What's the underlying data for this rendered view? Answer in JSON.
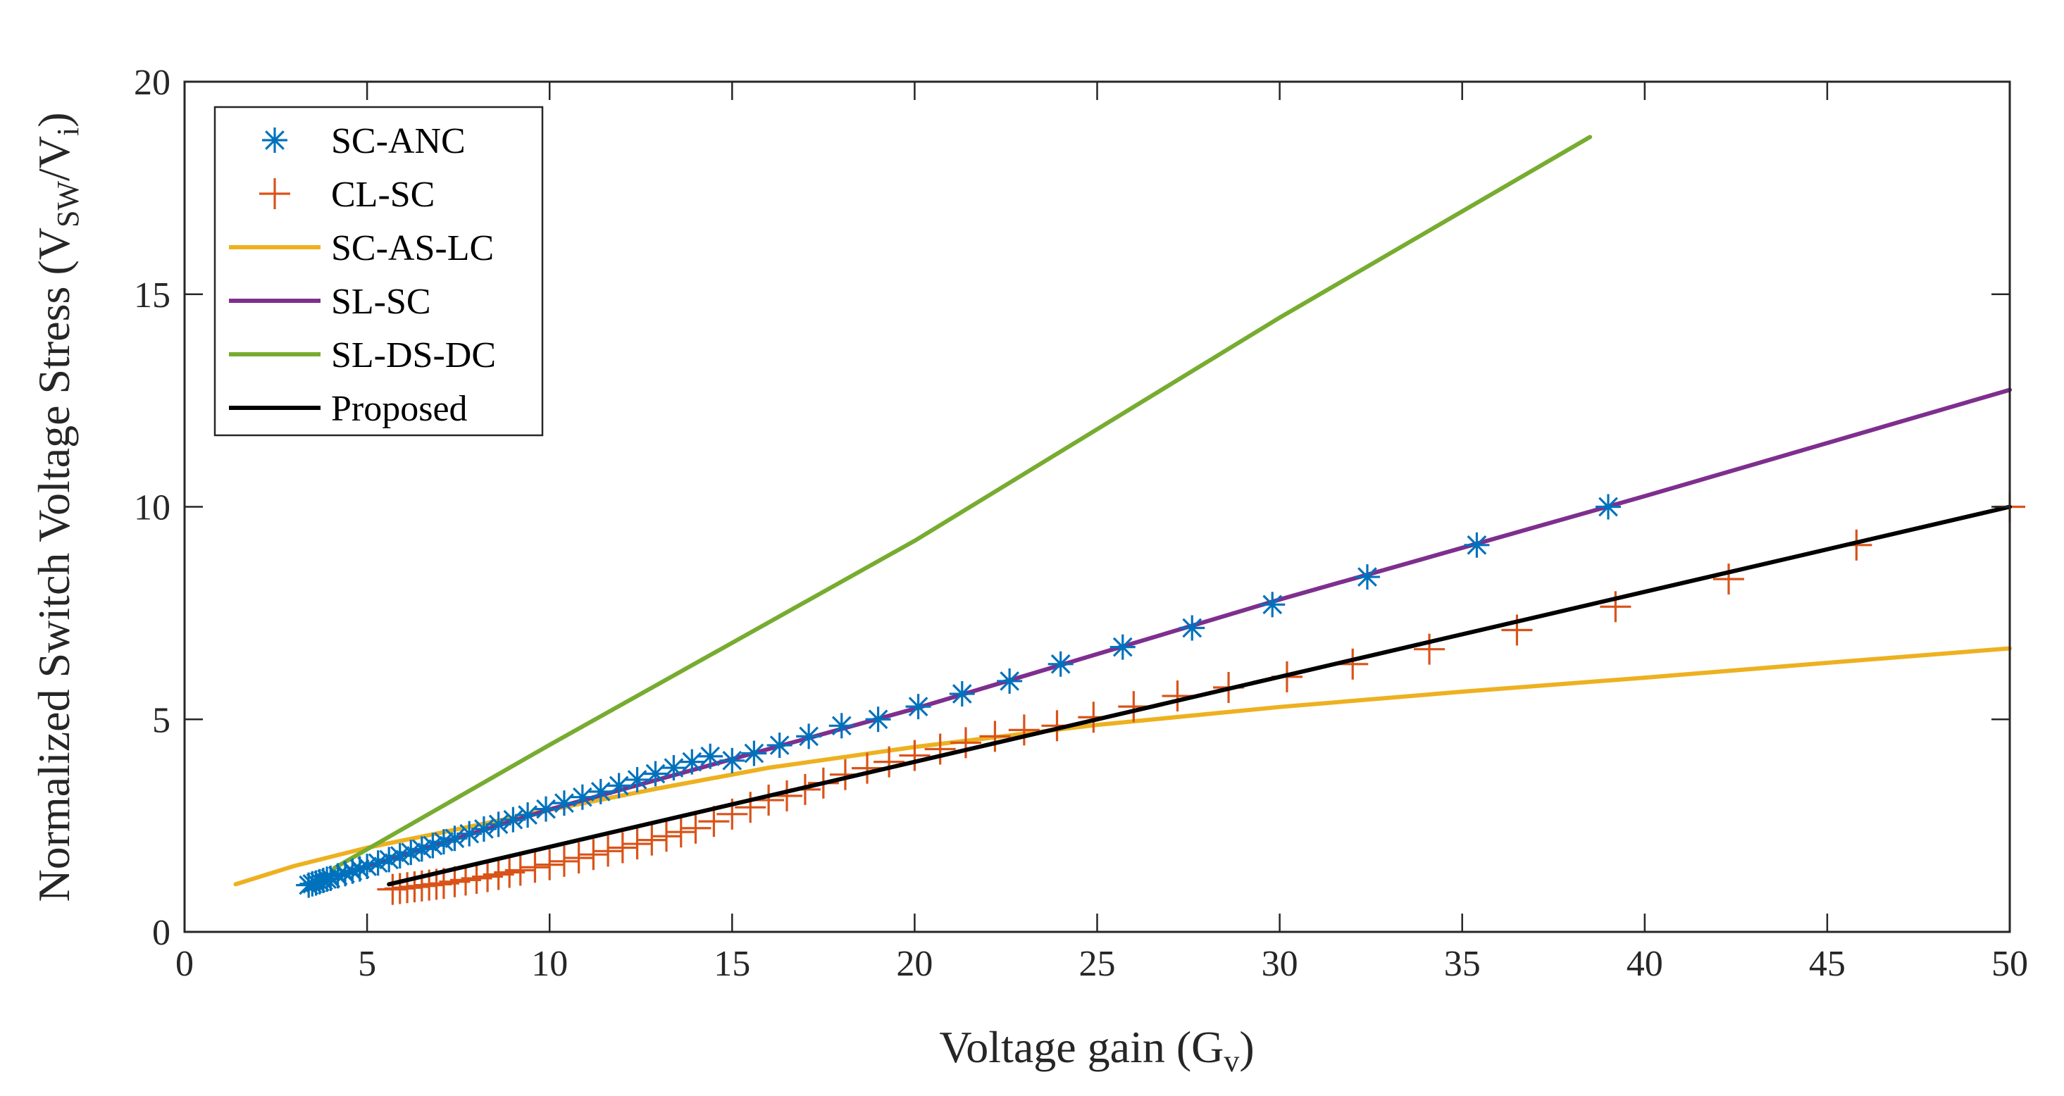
{
  "chart_data": {
    "type": "line",
    "title": "",
    "xlabel": {
      "main": "Voltage gain (G",
      "sub": "v",
      "close": ")"
    },
    "ylabel": {
      "main": "Normalized Switch Voltage Stress (V",
      "sub": "SW",
      "mid": "/V",
      "sub2": "i",
      "close": ")"
    },
    "xlim": [
      0,
      50
    ],
    "ylim": [
      0,
      20
    ],
    "xticks": [
      0,
      5,
      10,
      15,
      20,
      25,
      30,
      35,
      40,
      45,
      50
    ],
    "yticks": [
      0,
      5,
      10,
      15,
      20
    ],
    "grid": false,
    "legend_position": "top-left",
    "series": [
      {
        "name": "SC-ANC",
        "style": "marker",
        "marker": "asterisk",
        "color": "#0072BD",
        "x": [
          3.4,
          3.5,
          3.6,
          3.7,
          3.8,
          3.9,
          4.0,
          4.2,
          4.4,
          4.6,
          4.8,
          5.0,
          5.3,
          5.6,
          5.9,
          6.2,
          6.5,
          6.8,
          7.1,
          7.4,
          7.8,
          8.2,
          8.6,
          9.0,
          9.4,
          9.9,
          10.4,
          10.9,
          11.4,
          11.9,
          12.4,
          12.9,
          13.4,
          13.9,
          14.4,
          15.0,
          15.6,
          16.3,
          17.1,
          18.0,
          19.0,
          20.1,
          21.3,
          22.6,
          24.0,
          25.7,
          27.6,
          29.8,
          32.4,
          35.4,
          39.0
        ],
        "y": [
          1.1,
          1.13,
          1.15,
          1.18,
          1.21,
          1.24,
          1.26,
          1.32,
          1.37,
          1.43,
          1.48,
          1.54,
          1.62,
          1.7,
          1.79,
          1.87,
          1.95,
          2.03,
          2.12,
          2.2,
          2.31,
          2.42,
          2.53,
          2.64,
          2.75,
          2.89,
          3.03,
          3.17,
          3.3,
          3.44,
          3.58,
          3.72,
          3.86,
          4.0,
          4.13,
          4.03,
          4.2,
          4.39,
          4.6,
          4.85,
          5.0,
          5.3,
          5.6,
          5.9,
          6.3,
          6.7,
          7.15,
          7.7,
          8.35,
          9.1,
          10.0
        ]
      },
      {
        "name": "CL-SC",
        "style": "marker",
        "marker": "plus",
        "color": "#D95319",
        "x": [
          5.7,
          5.9,
          6.1,
          6.3,
          6.5,
          6.7,
          6.9,
          7.1,
          7.4,
          7.7,
          8.0,
          8.3,
          8.6,
          8.9,
          9.2,
          9.6,
          10.0,
          10.4,
          10.8,
          11.2,
          11.6,
          12.0,
          12.4,
          12.8,
          13.2,
          13.6,
          14.0,
          14.5,
          15.0,
          15.5,
          16.0,
          16.5,
          17.0,
          17.5,
          18.1,
          18.7,
          19.3,
          20.0,
          20.7,
          21.4,
          22.2,
          23.0,
          23.9,
          24.9,
          26.0,
          27.2,
          28.6,
          30.2,
          32.0,
          34.1,
          36.5,
          39.2,
          42.3,
          45.8,
          50.0
        ],
        "y": [
          1.0,
          1.02,
          1.04,
          1.06,
          1.08,
          1.1,
          1.12,
          1.14,
          1.18,
          1.22,
          1.26,
          1.3,
          1.35,
          1.4,
          1.45,
          1.52,
          1.58,
          1.66,
          1.74,
          1.82,
          1.9,
          1.98,
          2.07,
          2.16,
          2.25,
          2.35,
          2.44,
          2.6,
          2.77,
          2.93,
          3.1,
          3.2,
          3.35,
          3.5,
          3.7,
          3.85,
          4.0,
          4.15,
          4.3,
          4.45,
          4.6,
          4.75,
          4.85,
          5.05,
          5.3,
          5.55,
          5.75,
          6.0,
          6.3,
          6.65,
          7.1,
          7.65,
          8.3,
          9.1,
          10.0
        ]
      },
      {
        "name": "SC-AS-LC",
        "style": "line",
        "color": "#EDB120",
        "x": [
          1.4,
          3.0,
          5.0,
          7.0,
          10.0,
          13.0,
          16.0,
          20.0,
          25.0,
          30.0,
          35.0,
          40.0,
          45.0,
          50.0
        ],
        "y": [
          1.12,
          1.55,
          1.98,
          2.33,
          2.87,
          3.38,
          3.86,
          4.35,
          4.87,
          5.29,
          5.65,
          5.98,
          6.33,
          6.67
        ]
      },
      {
        "name": "SL-SC",
        "style": "line",
        "color": "#7E2F8E",
        "x": [
          4.3,
          10.0,
          20.0,
          30.0,
          40.0,
          50.0
        ],
        "y": [
          1.35,
          2.88,
          5.25,
          7.82,
          10.25,
          12.75
        ]
      },
      {
        "name": "SL-DS-DC",
        "style": "line",
        "color": "#77AC30",
        "x": [
          4.1,
          10.0,
          20.0,
          30.0,
          38.5
        ],
        "y": [
          1.5,
          4.4,
          9.2,
          14.45,
          18.7
        ]
      },
      {
        "name": "Proposed",
        "style": "line",
        "color": "#000000",
        "x": [
          5.6,
          10.0,
          20.0,
          30.0,
          40.0,
          50.0
        ],
        "y": [
          1.12,
          2.0,
          4.0,
          6.0,
          8.0,
          10.0
        ]
      }
    ]
  }
}
